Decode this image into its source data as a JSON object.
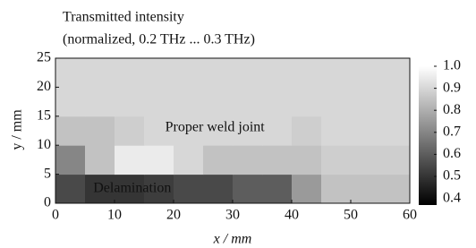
{
  "chart_data": {
    "type": "heatmap",
    "title": [
      "Transmitted intensity",
      "(normalized, 0.2 THz ... 0.3 THz)"
    ],
    "x_label": "x / mm",
    "y_label": "y / mm",
    "x": [
      2.5,
      7.5,
      12.5,
      17.5,
      22.5,
      27.5,
      32.5,
      37.5,
      42.5,
      47.5,
      52.5,
      57.5
    ],
    "y": [
      2.5,
      7.5,
      12.5,
      17.5,
      22.5
    ],
    "values": [
      [
        0.55,
        0.5,
        0.5,
        0.52,
        0.55,
        0.55,
        0.6,
        0.6,
        0.75,
        0.85,
        0.85,
        0.85
      ],
      [
        0.7,
        0.85,
        0.95,
        0.95,
        0.9,
        0.85,
        0.85,
        0.85,
        0.85,
        0.88,
        0.88,
        0.88
      ],
      [
        0.85,
        0.85,
        0.88,
        0.9,
        0.9,
        0.9,
        0.9,
        0.9,
        0.88,
        0.9,
        0.9,
        0.9
      ],
      [
        0.9,
        0.9,
        0.9,
        0.9,
        0.9,
        0.9,
        0.9,
        0.9,
        0.9,
        0.9,
        0.9,
        0.9
      ],
      [
        0.9,
        0.9,
        0.9,
        0.9,
        0.9,
        0.9,
        0.9,
        0.9,
        0.9,
        0.9,
        0.9,
        0.9
      ]
    ],
    "xlim": [
      0,
      60
    ],
    "ylim": [
      0,
      25
    ],
    "xticks": [
      0,
      10,
      20,
      30,
      40,
      50,
      60
    ],
    "yticks": [
      0,
      5,
      10,
      15,
      20,
      25
    ],
    "colormap": "gray",
    "clim": [
      0.37,
      1.0
    ],
    "cticks": [
      {
        "value": 1.0,
        "label": "1.0"
      },
      0.9,
      0.8,
      0.7,
      0.6,
      0.5,
      0.4
    ],
    "annotations": [
      {
        "text": "Proper weld joint",
        "x": 27,
        "y": 13
      },
      {
        "text": "Delamination",
        "x": 13,
        "y": 2.5
      }
    ]
  }
}
